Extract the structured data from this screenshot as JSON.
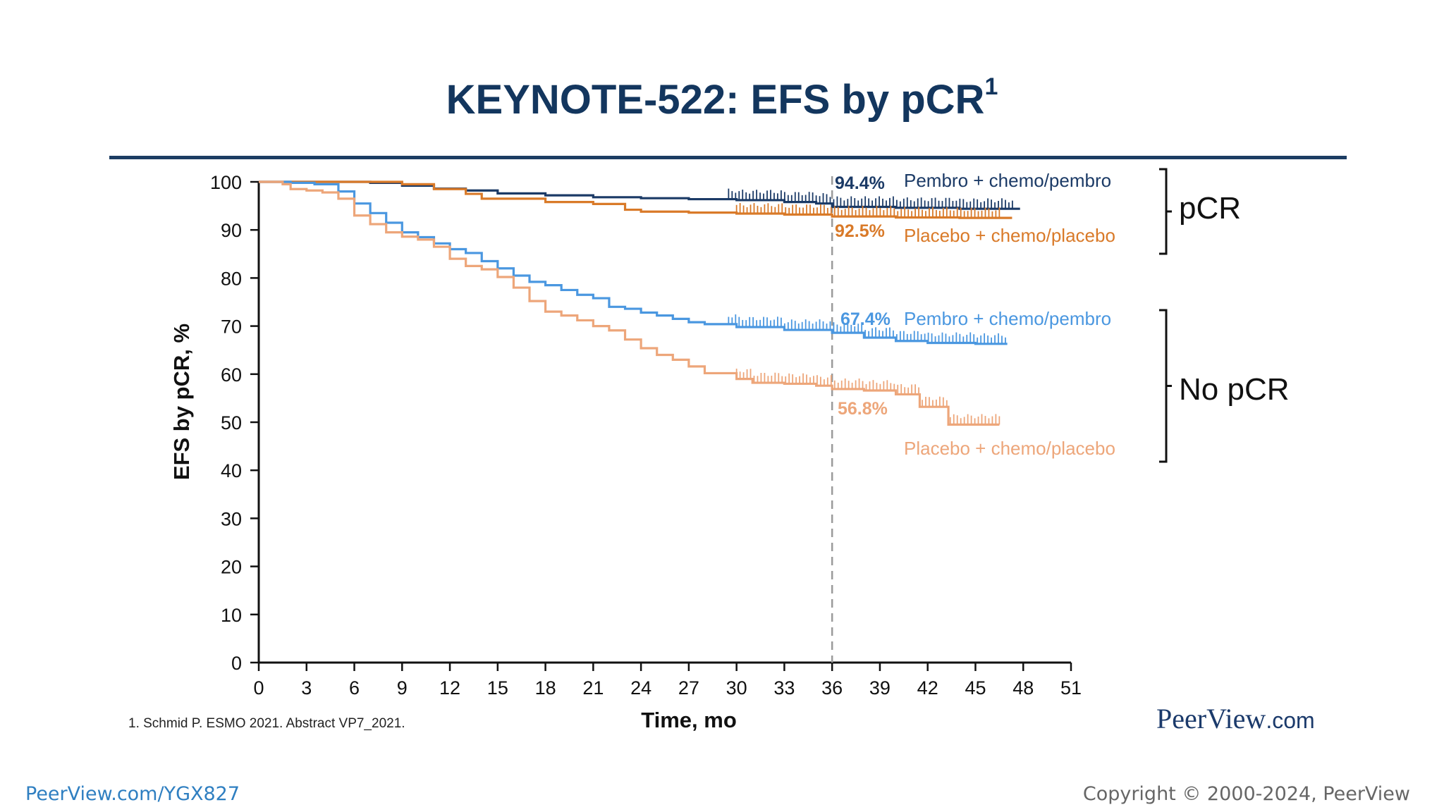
{
  "slide": {
    "title": "KEYNOTE-522: EFS by pCR",
    "title_superscript": "1",
    "footnote": "1. Schmid P. ESMO 2021. Abstract VP7_2021.",
    "brand_main": "PeerView",
    "brand_domain": ".com",
    "link": "PeerView.com/YGX827",
    "copyright": "Copyright © 2000-2024, PeerView"
  },
  "chart_data": {
    "type": "line",
    "xlabel": "Time, mo",
    "ylabel": "EFS by pCR, %",
    "xlim": [
      0,
      51
    ],
    "ylim": [
      0,
      100
    ],
    "xticks": [
      0,
      3,
      6,
      9,
      12,
      15,
      18,
      21,
      24,
      27,
      30,
      33,
      36,
      39,
      42,
      45,
      48,
      51
    ],
    "yticks": [
      0,
      10,
      20,
      30,
      40,
      50,
      60,
      70,
      80,
      90,
      100
    ],
    "grid": false,
    "reference_line_x": 36,
    "groups": [
      {
        "label": "pCR",
        "series_indices": [
          0,
          1
        ],
        "y_range": [
          82,
          100
        ]
      },
      {
        "label": "No pCR",
        "series_indices": [
          2,
          3
        ],
        "y_range": [
          41,
          73
        ]
      }
    ],
    "series": [
      {
        "name": "Pembro + chemo/pembro",
        "group": "pCR",
        "color": "#1b3a66",
        "value_at_36": "94.4%",
        "points": [
          [
            0,
            100
          ],
          [
            3,
            100
          ],
          [
            5,
            100
          ],
          [
            7,
            99.8
          ],
          [
            9,
            99.2
          ],
          [
            11,
            98.6
          ],
          [
            13,
            98.2
          ],
          [
            15,
            97.6
          ],
          [
            18,
            97.2
          ],
          [
            21,
            96.8
          ],
          [
            24,
            96.6
          ],
          [
            27,
            96.4
          ],
          [
            30,
            96.2
          ],
          [
            33,
            95.8
          ],
          [
            35,
            95.5
          ],
          [
            36,
            94.8
          ],
          [
            40,
            94.6
          ],
          [
            44,
            94.4
          ],
          [
            47.8,
            94.4
          ]
        ],
        "censor_range": [
          29.5,
          47.5
        ]
      },
      {
        "name": "Placebo + chemo/placebo",
        "group": "pCR",
        "color": "#d97a29",
        "value_at_36": "92.5%",
        "points": [
          [
            0,
            100
          ],
          [
            4,
            100
          ],
          [
            8,
            100
          ],
          [
            9,
            99.5
          ],
          [
            11,
            98.5
          ],
          [
            13,
            97.5
          ],
          [
            14,
            96.5
          ],
          [
            18,
            95.8
          ],
          [
            21,
            95.4
          ],
          [
            23,
            94.2
          ],
          [
            24,
            93.8
          ],
          [
            27,
            93.6
          ],
          [
            30,
            93.4
          ],
          [
            33,
            93.2
          ],
          [
            36,
            92.8
          ],
          [
            40,
            92.6
          ],
          [
            44,
            92.5
          ],
          [
            47.3,
            92.5
          ]
        ],
        "censor_range": [
          30,
          46.5
        ]
      },
      {
        "name": "Pembro + chemo/pembro",
        "group": "No pCR",
        "color": "#4a97e0",
        "value_at_36": "67.4%",
        "points": [
          [
            0,
            100
          ],
          [
            2,
            99.8
          ],
          [
            3.5,
            99.5
          ],
          [
            5,
            98
          ],
          [
            6,
            95.5
          ],
          [
            7,
            93.5
          ],
          [
            8,
            91.5
          ],
          [
            9,
            89.5
          ],
          [
            10,
            88.5
          ],
          [
            11,
            87.2
          ],
          [
            12,
            86
          ],
          [
            13,
            85.2
          ],
          [
            14,
            83.5
          ],
          [
            15,
            82
          ],
          [
            16,
            80.5
          ],
          [
            17,
            79.2
          ],
          [
            18,
            78.5
          ],
          [
            19,
            77.5
          ],
          [
            20,
            76.5
          ],
          [
            21,
            75.8
          ],
          [
            22,
            74
          ],
          [
            23,
            73.6
          ],
          [
            24,
            72.8
          ],
          [
            25,
            72.2
          ],
          [
            26,
            71.5
          ],
          [
            27,
            70.8
          ],
          [
            28,
            70.4
          ],
          [
            30,
            69.8
          ],
          [
            33,
            69.2
          ],
          [
            36,
            68.6
          ],
          [
            38,
            67.6
          ],
          [
            40,
            66.9
          ],
          [
            42,
            66.5
          ],
          [
            45,
            66.3
          ],
          [
            47,
            66.3
          ]
        ],
        "censor_range": [
          29.5,
          47
        ]
      },
      {
        "name": "Placebo + chemo/placebo",
        "group": "No pCR",
        "color": "#eda67a",
        "value_at_36": "56.8%",
        "points": [
          [
            0,
            100
          ],
          [
            1.5,
            99.5
          ],
          [
            2,
            98.5
          ],
          [
            3,
            98.2
          ],
          [
            4,
            97.8
          ],
          [
            5,
            96.5
          ],
          [
            6,
            93
          ],
          [
            7,
            91.2
          ],
          [
            8,
            89.5
          ],
          [
            9,
            88.6
          ],
          [
            10,
            88
          ],
          [
            11,
            86.5
          ],
          [
            12,
            84
          ],
          [
            13,
            82.5
          ],
          [
            14,
            81.8
          ],
          [
            15,
            80.2
          ],
          [
            16,
            78
          ],
          [
            17,
            75.2
          ],
          [
            18,
            73
          ],
          [
            19,
            72.2
          ],
          [
            20,
            71.2
          ],
          [
            21,
            70
          ],
          [
            22,
            69.1
          ],
          [
            23,
            67.2
          ],
          [
            24,
            65.4
          ],
          [
            25,
            64
          ],
          [
            26,
            63
          ],
          [
            27,
            61.6
          ],
          [
            28,
            60.2
          ],
          [
            30,
            59
          ],
          [
            31,
            58.2
          ],
          [
            33,
            58
          ],
          [
            35,
            57.6
          ],
          [
            36,
            56.9
          ],
          [
            38,
            56.6
          ],
          [
            40,
            55.8
          ],
          [
            41.5,
            55.5
          ],
          [
            41.5,
            53.2
          ],
          [
            43,
            53.2
          ],
          [
            43.3,
            49.5
          ],
          [
            46.5,
            49.5
          ]
        ],
        "censor_range": [
          30,
          46.5
        ]
      }
    ]
  }
}
